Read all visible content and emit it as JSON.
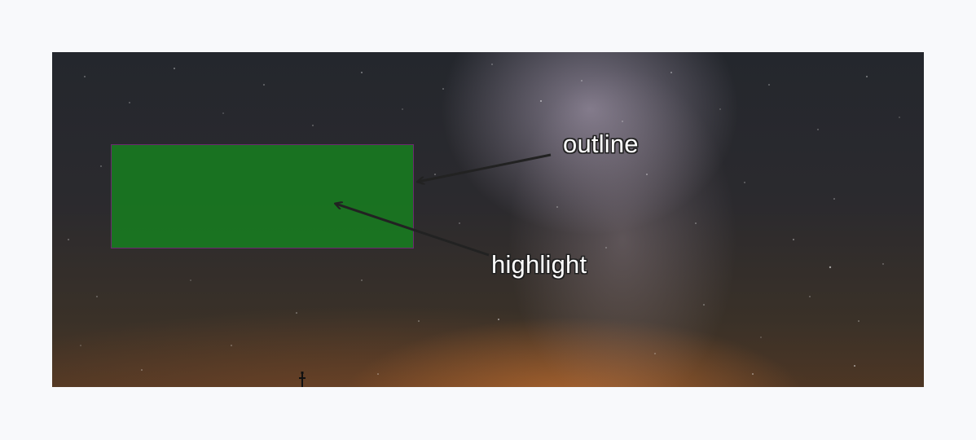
{
  "image": {
    "subject": "night-sky-photo",
    "colors": {
      "page_background": "#f8f9fb",
      "highlight_fill": "#16821e",
      "outline_stroke": "#6b2a6f",
      "arrow": "#222222",
      "label_text": "#ffffff"
    }
  },
  "annotations": {
    "outline_label": "outline",
    "highlight_label": "highlight"
  }
}
